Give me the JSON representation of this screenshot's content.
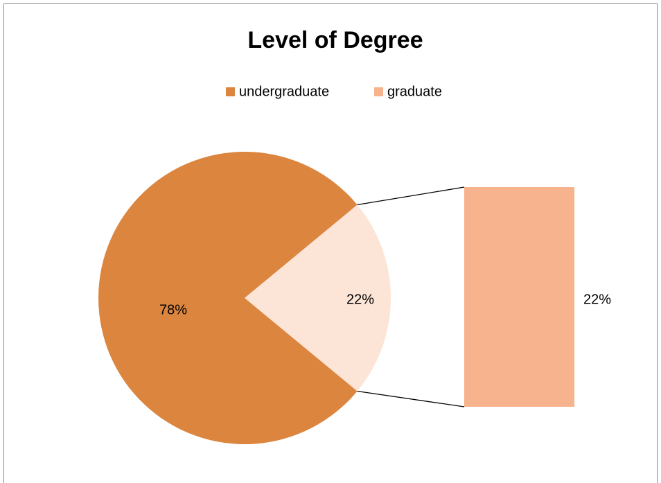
{
  "chart_data": {
    "type": "bar-of-pie",
    "title": "Level of Degree",
    "categories": [
      "undergraduate",
      "graduate"
    ],
    "values": [
      78,
      22
    ],
    "value_labels": [
      "78%",
      "22%"
    ],
    "colors": [
      "#dc853e",
      "#f7b38d"
    ],
    "legend": "top"
  }
}
